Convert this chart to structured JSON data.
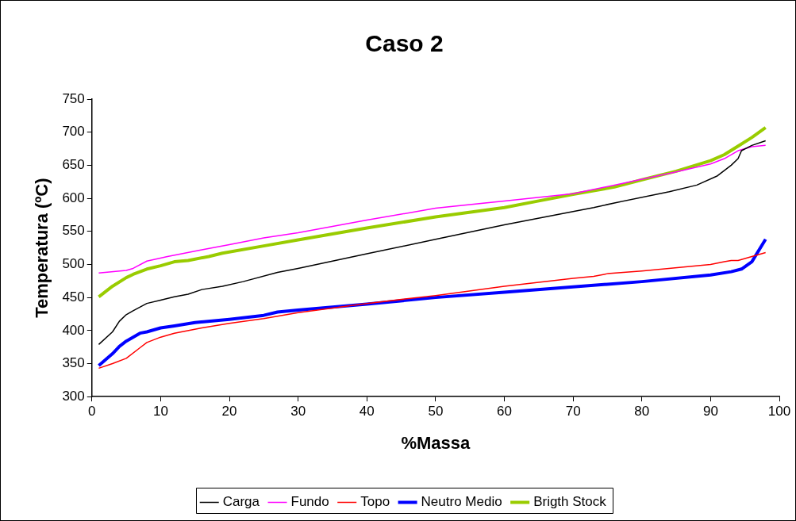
{
  "chart_data": {
    "type": "line",
    "title": "Caso 2",
    "xlabel": "%Massa",
    "ylabel": "Temperatura (ºC)",
    "xlim": [
      0,
      100
    ],
    "xticks": [
      0,
      10,
      20,
      30,
      40,
      50,
      60,
      70,
      80,
      90,
      100
    ],
    "ylim": [
      300,
      750
    ],
    "yticks": [
      300,
      350,
      400,
      450,
      500,
      550,
      600,
      650,
      700,
      750
    ],
    "grid": false,
    "legend": "bottom",
    "marker": "none",
    "line_style": "solid",
    "series": [
      {
        "name": "Carga",
        "color": "#000000",
        "x": [
          1,
          3,
          4,
          5,
          6,
          8,
          10,
          12,
          14,
          16,
          19,
          22,
          27,
          30,
          40,
          50,
          60,
          70,
          73,
          76,
          84,
          88,
          91,
          93,
          94,
          94.5,
          96,
          98
        ],
        "values": [
          379,
          398,
          414,
          424,
          430,
          441,
          446,
          451,
          455,
          462,
          467,
          474,
          488,
          494,
          516,
          538,
          560,
          580,
          586,
          593,
          610,
          620,
          634,
          650,
          660,
          672,
          680,
          687
        ]
      },
      {
        "name": "Fundo",
        "color": "#ff00ff",
        "x": [
          1,
          5,
          6,
          8,
          11,
          16,
          20,
          25,
          30,
          40,
          50,
          60,
          70,
          76,
          85,
          90,
          92,
          94,
          96,
          98
        ],
        "values": [
          487,
          491,
          494,
          505,
          512,
          522,
          530,
          540,
          548,
          567,
          585,
          596,
          607,
          620,
          640,
          652,
          660,
          672,
          678,
          680
        ]
      },
      {
        "name": "Topo",
        "color": "#ff0000",
        "x": [
          1,
          3,
          5,
          7,
          8,
          10,
          12,
          16,
          20,
          25,
          30,
          40,
          50,
          60,
          65,
          70,
          73,
          75,
          80,
          90,
          92,
          93,
          94,
          96,
          98
        ],
        "values": [
          343,
          350,
          358,
          374,
          382,
          390,
          396,
          404,
          411,
          418,
          427,
          441,
          453,
          467,
          473,
          479,
          482,
          486,
          490,
          500,
          504,
          506,
          506,
          512,
          518
        ]
      },
      {
        "name": "Neutro Medio",
        "color": "#0000ff",
        "x": [
          1,
          3,
          4,
          5,
          7,
          8,
          10,
          12,
          15,
          20,
          25,
          27,
          30,
          40,
          50,
          60,
          70,
          80,
          90,
          93,
          94.5,
          96,
          98
        ],
        "values": [
          347,
          365,
          376,
          384,
          396,
          398,
          404,
          407,
          412,
          417,
          423,
          428,
          431,
          440,
          450,
          458,
          466,
          474,
          484,
          489,
          493,
          504,
          538
        ]
      },
      {
        "name": "Brigth Stock",
        "color": "#99cc00",
        "x": [
          1,
          3,
          5,
          6,
          7,
          8,
          10,
          12,
          14,
          17,
          19,
          25,
          30,
          40,
          50,
          60,
          65,
          70,
          76,
          80,
          85,
          90,
          92,
          94,
          96,
          98
        ],
        "values": [
          451,
          467,
          480,
          485,
          489,
          493,
          498,
          504,
          506,
          512,
          517,
          528,
          537,
          555,
          572,
          586,
          596,
          606,
          617,
          628,
          641,
          657,
          666,
          679,
          692,
          707
        ]
      }
    ]
  }
}
